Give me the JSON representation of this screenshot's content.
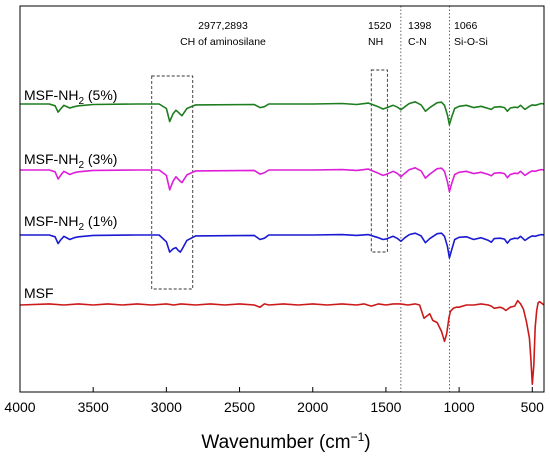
{
  "chart_data": {
    "type": "line",
    "title": "",
    "xlabel": "Wavenumber (cm",
    "xlabel_sup": "−1",
    "xlabel_close": ")",
    "ylabel": "",
    "xlim": [
      4000,
      420
    ],
    "x_reversed": true,
    "grid": false,
    "xticks": [
      "4000",
      "3500",
      "3000",
      "2500",
      "2000",
      "1500",
      "1000",
      "500"
    ],
    "series": [
      {
        "name": "MSF-NH",
        "name_sub": "2",
        "name_suffix": " (5%)",
        "color": "#1e7d1e",
        "x": [
          4000,
          3800,
          3760,
          3740,
          3725,
          3700,
          3660,
          3630,
          3600,
          3500,
          3200,
          3050,
          3000,
          2977,
          2955,
          2935,
          2920,
          2905,
          2893,
          2860,
          2800,
          2400,
          2360,
          2330,
          2300,
          2000,
          1800,
          1700,
          1620,
          1560,
          1520,
          1500,
          1450,
          1420,
          1398,
          1370,
          1340,
          1300,
          1260,
          1230,
          1200,
          1150,
          1120,
          1100,
          1080,
          1066,
          1050,
          1030,
          1000,
          950,
          900,
          850,
          800,
          780,
          760,
          720,
          690,
          670,
          650,
          620,
          600,
          580,
          550,
          520,
          500,
          480,
          460,
          440,
          420
        ],
        "y": [
          0,
          0,
          -0.4,
          -1.8,
          -1.2,
          -0.3,
          -0.9,
          -0.6,
          -0.4,
          -0.1,
          0,
          0,
          -1.0,
          -3.9,
          -2.2,
          -1.4,
          -1.8,
          -2.3,
          -2.6,
          -1.0,
          -0.2,
          -0.1,
          -0.8,
          -0.6,
          0,
          0,
          0.1,
          -0.1,
          0.2,
          -0.5,
          -1.1,
          -0.9,
          -0.3,
          -0.7,
          -1.3,
          -0.6,
          0.1,
          0.5,
          -0.2,
          -1.6,
          -0.8,
          0.3,
          0.4,
          -0.3,
          -2.4,
          -4.6,
          -2.8,
          -1.0,
          -0.5,
          -0.3,
          -0.8,
          -0.5,
          -1.0,
          -1.2,
          -0.7,
          -0.6,
          -0.8,
          -1.6,
          -0.9,
          -0.7,
          -0.8,
          -0.3,
          -1.2,
          -0.5,
          -0.2,
          -0.3,
          -0.1,
          0.1,
          0
        ]
      },
      {
        "name": "MSF-NH",
        "name_sub": "2",
        "name_suffix": " (3%)",
        "color": "#dd1ed9",
        "x": [
          4000,
          3800,
          3760,
          3740,
          3725,
          3700,
          3660,
          3630,
          3600,
          3500,
          3200,
          3050,
          3000,
          2977,
          2955,
          2935,
          2920,
          2905,
          2893,
          2860,
          2800,
          2400,
          2360,
          2330,
          2300,
          2000,
          1800,
          1700,
          1620,
          1560,
          1520,
          1500,
          1450,
          1420,
          1398,
          1370,
          1340,
          1300,
          1260,
          1230,
          1200,
          1150,
          1120,
          1100,
          1080,
          1066,
          1050,
          1030,
          1000,
          950,
          900,
          850,
          800,
          780,
          760,
          720,
          690,
          670,
          650,
          620,
          600,
          580,
          550,
          520,
          500,
          480,
          460,
          440,
          420
        ],
        "y": [
          0,
          0,
          -0.4,
          -2.0,
          -1.3,
          -0.3,
          -1.0,
          -0.6,
          -0.4,
          -0.1,
          0,
          0,
          -1.2,
          -4.4,
          -2.5,
          -1.5,
          -2.0,
          -2.5,
          -2.8,
          -1.1,
          -0.2,
          -0.1,
          -0.9,
          -0.6,
          0,
          0,
          0.1,
          -0.1,
          0.2,
          -0.6,
          -1.2,
          -1.0,
          -0.3,
          -0.8,
          -1.5,
          -0.7,
          0.1,
          0.5,
          -0.2,
          -1.8,
          -0.9,
          0.3,
          0.4,
          -0.3,
          -2.6,
          -4.8,
          -2.9,
          -1.0,
          -0.5,
          -0.3,
          -0.8,
          -0.5,
          -1.0,
          -1.3,
          -0.7,
          -0.6,
          -0.8,
          -1.7,
          -1.0,
          -0.7,
          -0.8,
          -0.3,
          -1.2,
          -0.5,
          -0.2,
          -0.3,
          -0.1,
          0.1,
          0
        ]
      },
      {
        "name": "MSF-NH",
        "name_sub": "2",
        "name_suffix": " (1%)",
        "color": "#1a1ad2",
        "x": [
          4000,
          3800,
          3760,
          3740,
          3725,
          3700,
          3660,
          3630,
          3600,
          3500,
          3200,
          3050,
          3000,
          2977,
          2955,
          2935,
          2920,
          2905,
          2893,
          2860,
          2800,
          2400,
          2360,
          2330,
          2300,
          2000,
          1800,
          1700,
          1620,
          1560,
          1520,
          1500,
          1450,
          1420,
          1398,
          1370,
          1340,
          1300,
          1260,
          1230,
          1200,
          1150,
          1120,
          1100,
          1080,
          1066,
          1050,
          1030,
          1000,
          950,
          900,
          850,
          800,
          780,
          760,
          720,
          690,
          670,
          650,
          620,
          600,
          580,
          550,
          520,
          500,
          480,
          460,
          440,
          420
        ],
        "y": [
          0,
          0,
          -0.4,
          -1.9,
          -1.2,
          -0.3,
          -1.0,
          -0.6,
          -0.4,
          -0.1,
          0,
          0,
          -1.5,
          -3.8,
          -3.1,
          -2.8,
          -3.4,
          -3.8,
          -3.2,
          -1.2,
          -0.2,
          -0.1,
          -1.0,
          -0.7,
          0,
          0,
          0.1,
          -0.1,
          0.1,
          -0.5,
          -1.0,
          -0.9,
          -0.3,
          -0.8,
          -1.4,
          -0.6,
          0.1,
          0.4,
          -0.2,
          -1.7,
          -0.8,
          0.3,
          0.4,
          -0.3,
          -2.5,
          -5.1,
          -3.2,
          -1.0,
          -0.5,
          -0.4,
          -1.0,
          -0.6,
          -1.2,
          -1.6,
          -0.8,
          -0.7,
          -0.9,
          -1.8,
          -1.0,
          -0.7,
          -0.8,
          -0.3,
          -1.2,
          -0.5,
          -0.2,
          -0.3,
          -0.1,
          0.1,
          0
        ]
      },
      {
        "name": "MSF",
        "name_sub": "",
        "name_suffix": "",
        "color": "#cc1a1a",
        "x": [
          4000,
          3800,
          3700,
          3600,
          3500,
          3400,
          3300,
          3200,
          3100,
          3000,
          2950,
          2900,
          2800,
          2700,
          2600,
          2500,
          2400,
          2360,
          2330,
          2300,
          2200,
          2100,
          2000,
          1900,
          1800,
          1700,
          1650,
          1600,
          1550,
          1500,
          1450,
          1400,
          1350,
          1300,
          1270,
          1250,
          1240,
          1220,
          1200,
          1180,
          1150,
          1120,
          1100,
          1085,
          1070,
          1060,
          1040,
          1020,
          1000,
          950,
          900,
          850,
          800,
          780,
          760,
          720,
          700,
          680,
          650,
          620,
          600,
          580,
          560,
          540,
          520,
          510,
          500,
          490,
          480,
          470,
          460,
          450,
          440,
          430,
          420
        ],
        "y": [
          0,
          0.1,
          0,
          0.1,
          0,
          0.1,
          0,
          0.1,
          0,
          0.1,
          0,
          0.1,
          0,
          0.1,
          0,
          0.1,
          0,
          -0.2,
          0.1,
          0,
          0.1,
          0,
          0.1,
          0,
          0.1,
          0,
          0.1,
          -0.1,
          0.1,
          0,
          0.1,
          0.1,
          0,
          0.1,
          0,
          -0.8,
          -1.2,
          -1.0,
          -0.8,
          -1.4,
          -1.6,
          -2.4,
          -3.3,
          -2.6,
          -1.2,
          -0.6,
          -0.3,
          -0.2,
          -0.2,
          0,
          0,
          0.1,
          0,
          -0.1,
          -0.3,
          -0.2,
          -0.3,
          -0.5,
          -0.2,
          -0.1,
          0.4,
          0.1,
          -0.4,
          -1.5,
          -3.0,
          -4.8,
          -7.2,
          -5.5,
          -2.0,
          -0.5,
          0.2,
          0.3,
          0.2,
          0.1,
          0
        ]
      }
    ],
    "annotations": [
      {
        "line1": "2977,2893",
        "line2": "CH of aminosilane"
      },
      {
        "line1": "1520",
        "line2": "NH"
      },
      {
        "line1": "1398",
        "line2": "C-N"
      },
      {
        "line1": "1066",
        "line2": "Si-O-Si"
      }
    ],
    "dashed_boxes": [
      {
        "x_from": 3100,
        "x_to": 2820
      },
      {
        "x_from": 1600,
        "x_to": 1490
      }
    ],
    "dotted_lines": [
      1398,
      1066
    ]
  }
}
